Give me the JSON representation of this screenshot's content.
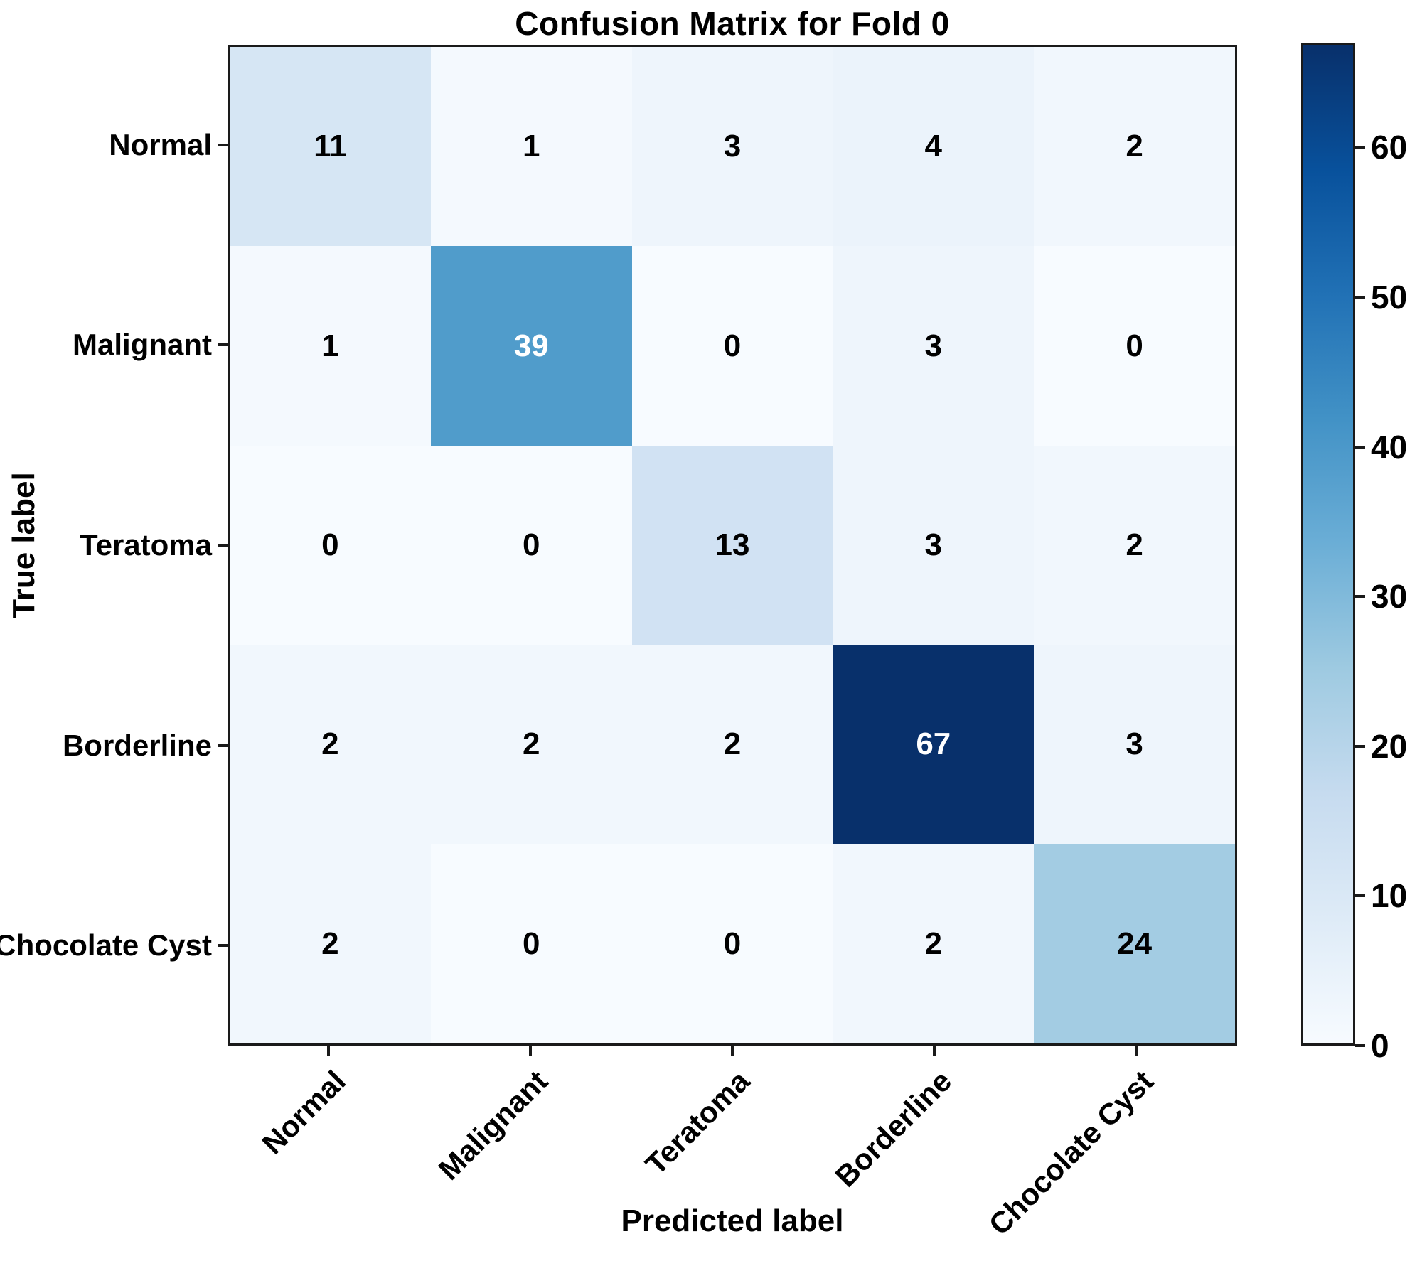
{
  "chart_data": {
    "type": "heatmap",
    "title": "Confusion Matrix for Fold 0",
    "xlabel": "Predicted label",
    "ylabel": "True label",
    "x_tick_labels": [
      "Normal",
      "Malignant",
      "Teratoma",
      "Borderline",
      "Chocolate Cyst"
    ],
    "y_tick_labels": [
      "Normal",
      "Malignant",
      "Teratoma",
      "Borderline",
      "Chocolate Cyst"
    ],
    "matrix": [
      [
        11,
        1,
        3,
        4,
        2
      ],
      [
        1,
        39,
        0,
        3,
        0
      ],
      [
        0,
        0,
        13,
        3,
        2
      ],
      [
        2,
        2,
        2,
        67,
        3
      ],
      [
        2,
        0,
        0,
        2,
        24
      ]
    ],
    "vmin": 0,
    "vmax": 67,
    "colormap_name": "Blues",
    "colormap_stops": [
      {
        "t": 0.0,
        "color": "#f7fbff"
      },
      {
        "t": 0.125,
        "color": "#deebf7"
      },
      {
        "t": 0.25,
        "color": "#c6dbef"
      },
      {
        "t": 0.375,
        "color": "#9ecae1"
      },
      {
        "t": 0.5,
        "color": "#6baed6"
      },
      {
        "t": 0.625,
        "color": "#4292c6"
      },
      {
        "t": 0.75,
        "color": "#2171b5"
      },
      {
        "t": 0.875,
        "color": "#08519c"
      },
      {
        "t": 1.0,
        "color": "#08306b"
      }
    ],
    "colorbar_ticks": [
      0,
      10,
      20,
      30,
      40,
      50,
      60
    ],
    "colorbar_position": "right",
    "grid": false,
    "axis_color": "#1a1a1a",
    "cell_text_dark": "#000000",
    "cell_text_light": "#ffffff",
    "background": "#ffffff"
  }
}
